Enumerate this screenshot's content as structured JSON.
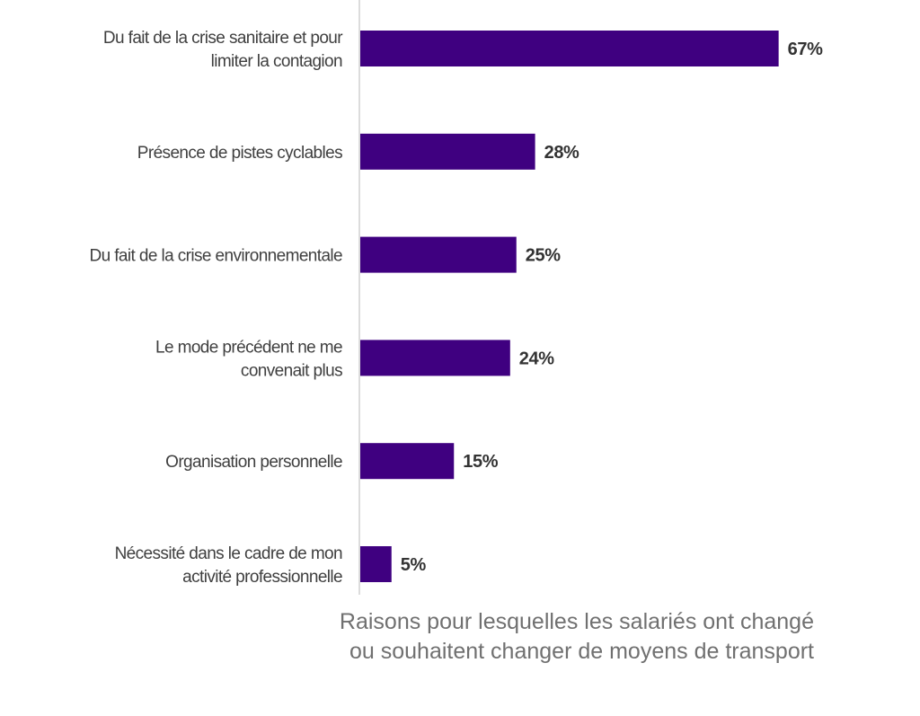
{
  "chart_data": {
    "type": "bar",
    "orientation": "horizontal",
    "categories": [
      [
        "Du fait de la crise sanitaire et pour",
        "limiter la contagion"
      ],
      [
        "Présence de pistes cyclables"
      ],
      [
        "Du fait de la crise environnementale"
      ],
      [
        "Le mode précédent ne me",
        "convenait plus"
      ],
      [
        "Organisation personnelle"
      ],
      [
        "Nécessité dans le cadre de mon",
        "activité professionnelle"
      ]
    ],
    "values": [
      67,
      28,
      25,
      24,
      15,
      5
    ],
    "value_labels": [
      "67%",
      "28%",
      "25%",
      "24%",
      "15%",
      "5%"
    ],
    "value_unit": "%",
    "xlim": [
      0,
      100
    ],
    "grid": false,
    "legend": "none",
    "colors": {
      "bar": "#3f0080",
      "axis": "#d0d0d0",
      "category_text": "#3f3f3f",
      "value_text": "#333333",
      "caption_text": "#707070"
    }
  },
  "caption": {
    "line1": "Raisons pour lesquelles les salariés ont changé",
    "line2": "ou souhaitent changer de moyens de transport"
  }
}
